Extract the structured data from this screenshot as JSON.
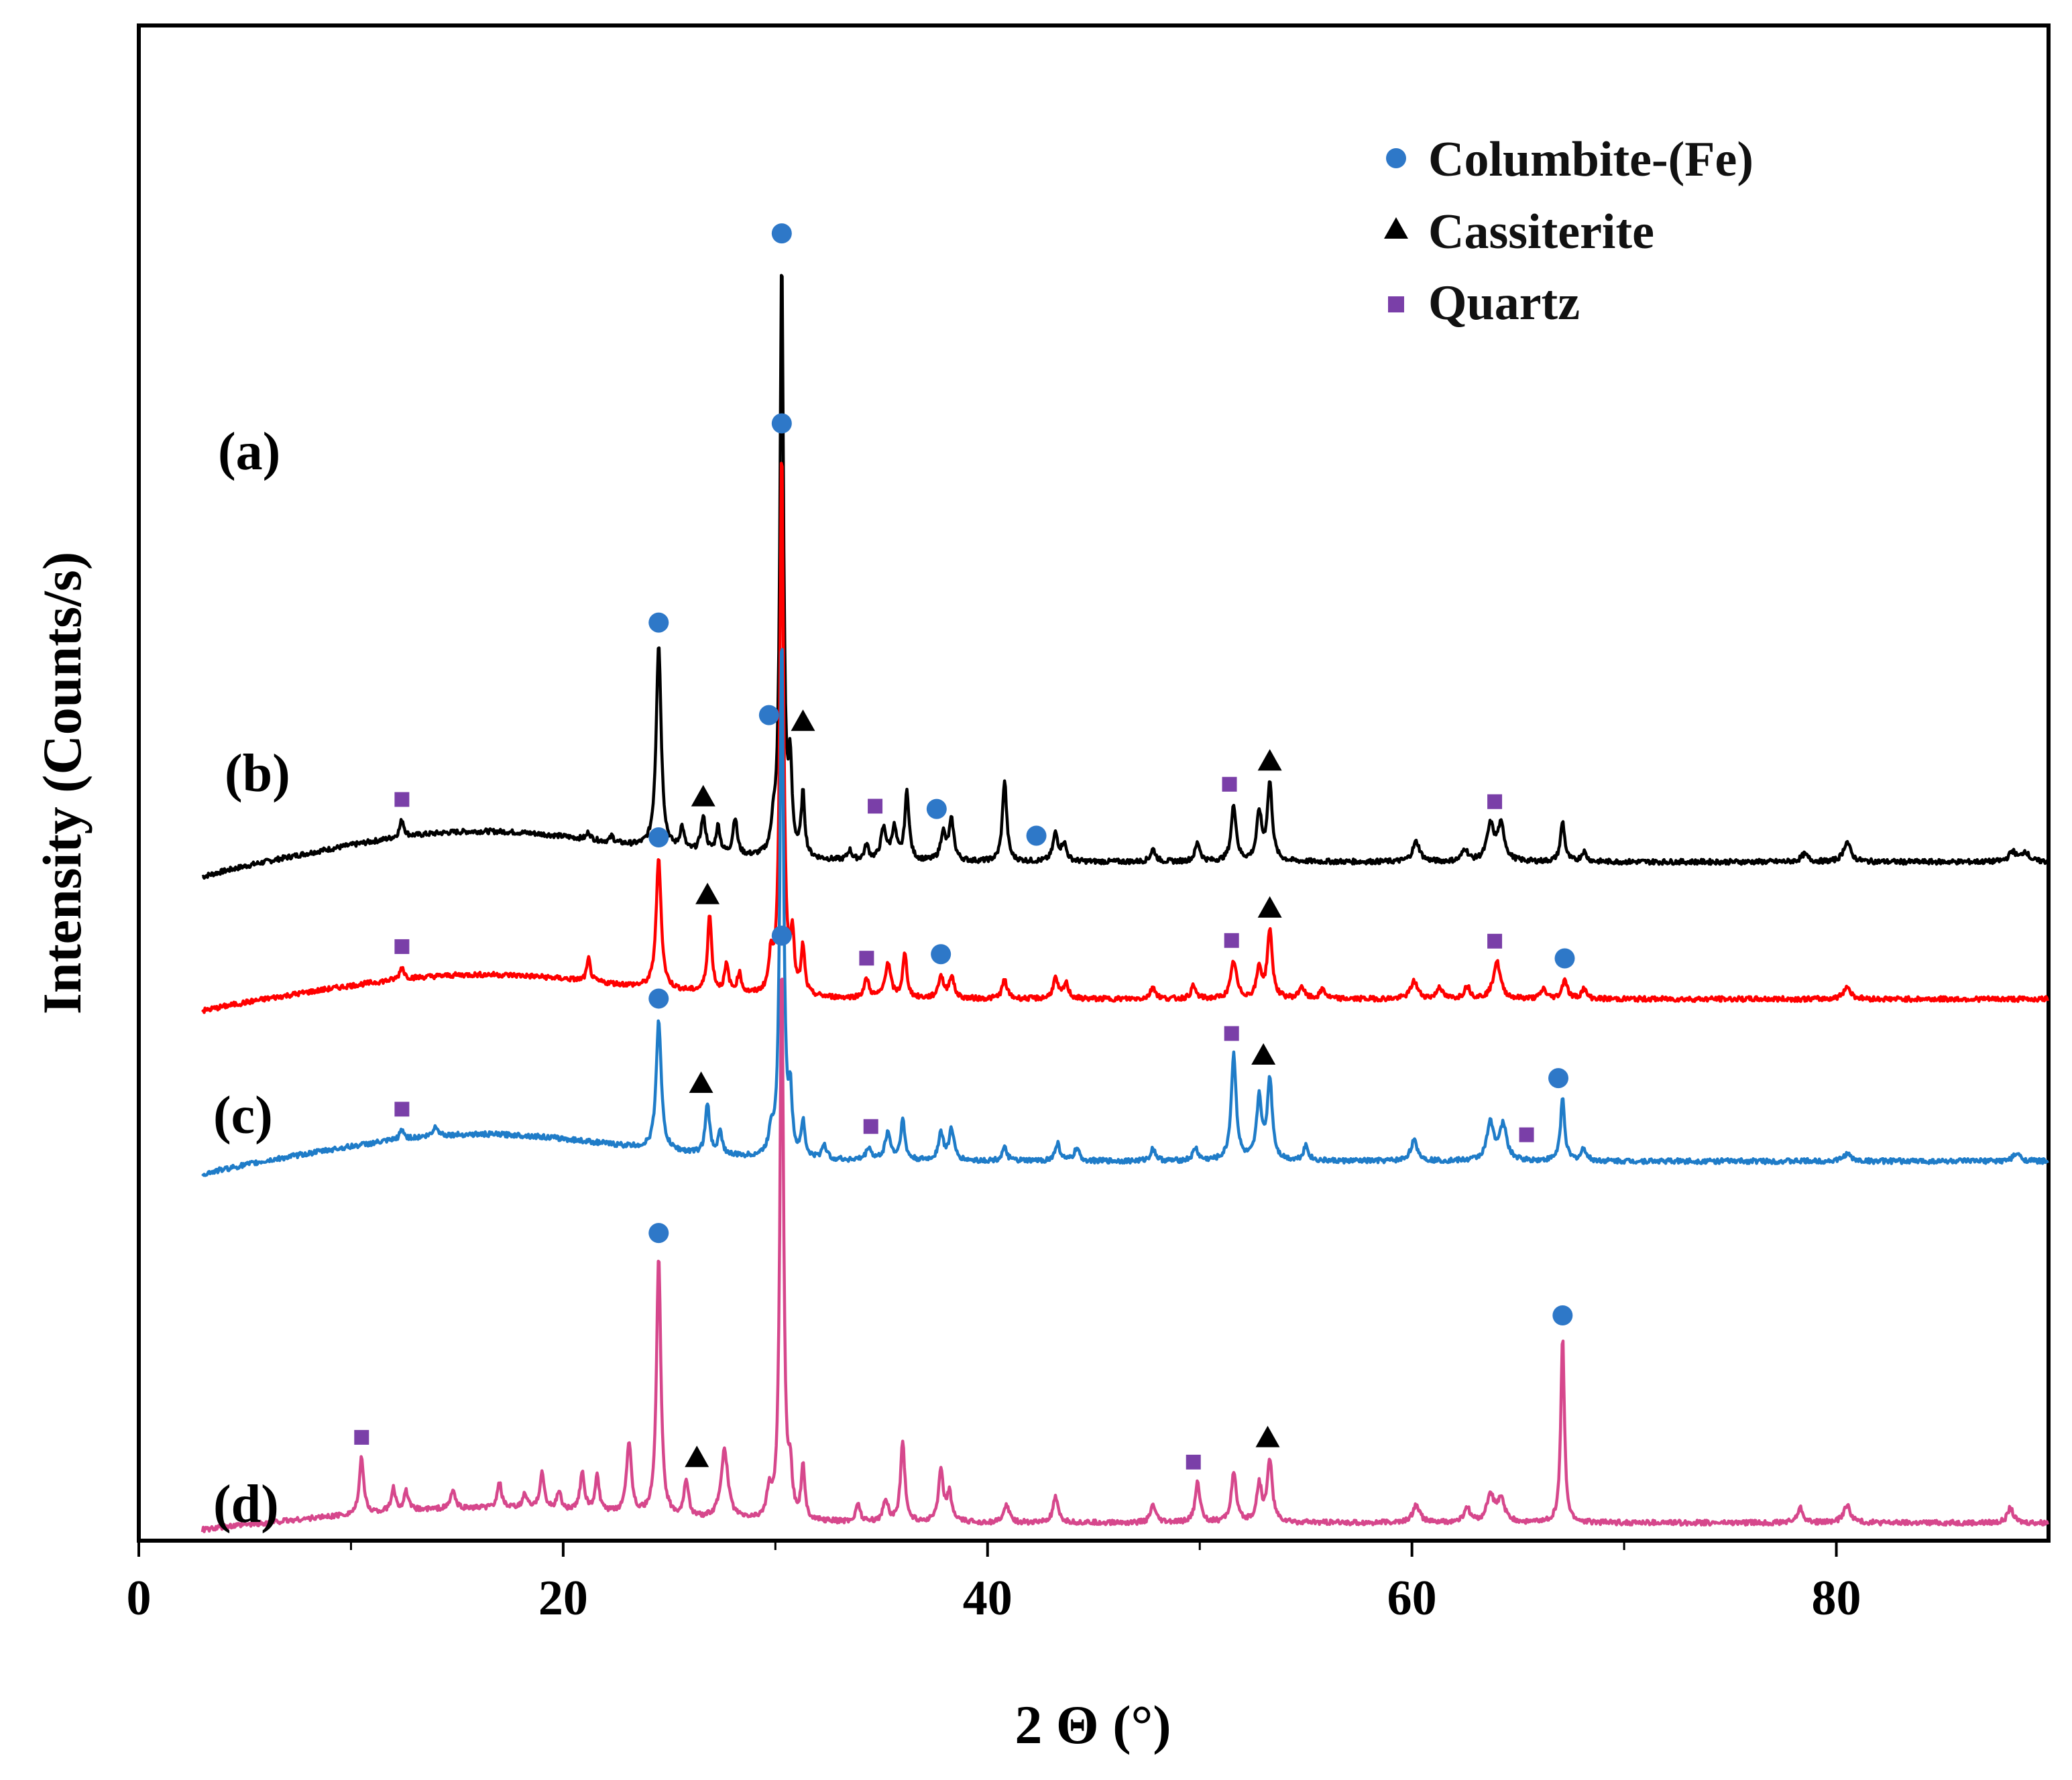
{
  "chart_data": {
    "type": "line",
    "title": "",
    "xlabel": "2 Θ (°)",
    "ylabel": "Intensity (Counts/s)",
    "xlim": [
      0,
      90
    ],
    "xticks": [
      0,
      20,
      40,
      60,
      80
    ],
    "yticks_shown": false,
    "x_range_measured": [
      3,
      90
    ],
    "legend": {
      "position": "top-right",
      "entries": [
        {
          "name": "Columbite-(Fe)",
          "marker": "circle",
          "color": "#2e78c8"
        },
        {
          "name": "Cassiterite",
          "marker": "triangle",
          "color": "#000000"
        },
        {
          "name": "Quartz",
          "marker": "square",
          "color": "#7a3fa8"
        }
      ]
    },
    "series": [
      {
        "name": "(a)",
        "color": "#000000",
        "offset": 540,
        "baseline": 25,
        "peaks": [
          [
            12.4,
            14,
            0.12
          ],
          [
            21.2,
            6,
            0.1
          ],
          [
            22.3,
            5,
            0.1
          ],
          [
            24.5,
            165,
            0.14
          ],
          [
            25.6,
            18,
            0.12
          ],
          [
            26.6,
            28,
            0.14
          ],
          [
            27.3,
            22,
            0.12
          ],
          [
            28.1,
            30,
            0.12
          ],
          [
            29.9,
            20,
            0.1
          ],
          [
            30.3,
            480,
            0.1
          ],
          [
            30.7,
            65,
            0.1
          ],
          [
            31.3,
            50,
            0.1
          ],
          [
            33.5,
            8,
            0.12
          ],
          [
            34.3,
            12,
            0.12
          ],
          [
            35.1,
            25,
            0.16
          ],
          [
            35.6,
            25,
            0.14
          ],
          [
            36.2,
            55,
            0.12
          ],
          [
            37.9,
            22,
            0.14
          ],
          [
            38.3,
            32,
            0.14
          ],
          [
            40.8,
            65,
            0.12
          ],
          [
            43.2,
            22,
            0.14
          ],
          [
            43.6,
            14,
            0.14
          ],
          [
            47.8,
            10,
            0.14
          ],
          [
            49.9,
            15,
            0.14
          ],
          [
            51.6,
            45,
            0.14
          ],
          [
            52.8,
            38,
            0.14
          ],
          [
            53.3,
            62,
            0.14
          ],
          [
            60.2,
            16,
            0.2
          ],
          [
            62.5,
            10,
            0.16
          ],
          [
            63.7,
            28,
            0.2
          ],
          [
            64.2,
            28,
            0.2
          ],
          [
            67.1,
            32,
            0.12
          ],
          [
            68.1,
            8,
            0.14
          ],
          [
            78.5,
            6,
            0.2
          ],
          [
            80.5,
            16,
            0.2
          ],
          [
            88.3,
            8,
            0.2
          ],
          [
            88.9,
            8,
            0.2
          ]
        ]
      },
      {
        "name": "(b)",
        "color": "#ff0000",
        "offset": 430,
        "baseline": 20,
        "peaks": [
          [
            12.4,
            10,
            0.12
          ],
          [
            21.2,
            18,
            0.1
          ],
          [
            24.5,
            105,
            0.14
          ],
          [
            26.9,
            62,
            0.12
          ],
          [
            27.7,
            22,
            0.12
          ],
          [
            28.3,
            16,
            0.12
          ],
          [
            29.8,
            28,
            0.12
          ],
          [
            30.3,
            440,
            0.1
          ],
          [
            30.8,
            45,
            0.1
          ],
          [
            31.3,
            38,
            0.1
          ],
          [
            34.3,
            15,
            0.14
          ],
          [
            35.3,
            28,
            0.16
          ],
          [
            36.1,
            35,
            0.12
          ],
          [
            37.8,
            18,
            0.14
          ],
          [
            38.3,
            18,
            0.14
          ],
          [
            40.8,
            15,
            0.14
          ],
          [
            43.2,
            16,
            0.14
          ],
          [
            43.7,
            12,
            0.14
          ],
          [
            47.8,
            10,
            0.14
          ],
          [
            49.7,
            10,
            0.14
          ],
          [
            51.6,
            30,
            0.16
          ],
          [
            52.8,
            24,
            0.14
          ],
          [
            53.3,
            55,
            0.14
          ],
          [
            54.8,
            10,
            0.14
          ],
          [
            55.8,
            8,
            0.14
          ],
          [
            60.1,
            14,
            0.2
          ],
          [
            61.3,
            10,
            0.14
          ],
          [
            62.6,
            10,
            0.16
          ],
          [
            64.0,
            30,
            0.2
          ],
          [
            66.2,
            8,
            0.14
          ],
          [
            67.2,
            16,
            0.14
          ],
          [
            68.1,
            8,
            0.14
          ],
          [
            80.5,
            10,
            0.2
          ]
        ]
      },
      {
        "name": "(c)",
        "color": "#1f7cc8",
        "offset": 300,
        "baseline": 22,
        "peaks": [
          [
            12.4,
            8,
            0.12
          ],
          [
            14.0,
            8,
            0.14
          ],
          [
            24.5,
            105,
            0.14
          ],
          [
            26.8,
            40,
            0.12
          ],
          [
            27.4,
            18,
            0.12
          ],
          [
            29.8,
            18,
            0.12
          ],
          [
            30.3,
            420,
            0.1
          ],
          [
            30.7,
            45,
            0.1
          ],
          [
            31.3,
            28,
            0.1
          ],
          [
            32.3,
            12,
            0.12
          ],
          [
            34.4,
            10,
            0.14
          ],
          [
            35.3,
            22,
            0.16
          ],
          [
            36.0,
            32,
            0.12
          ],
          [
            37.8,
            22,
            0.14
          ],
          [
            38.3,
            25,
            0.14
          ],
          [
            40.8,
            10,
            0.14
          ],
          [
            43.3,
            14,
            0.14
          ],
          [
            44.2,
            10,
            0.14
          ],
          [
            47.8,
            10,
            0.14
          ],
          [
            49.8,
            10,
            0.14
          ],
          [
            51.6,
            85,
            0.14
          ],
          [
            52.8,
            50,
            0.14
          ],
          [
            53.3,
            65,
            0.14
          ],
          [
            55.0,
            12,
            0.14
          ],
          [
            60.1,
            16,
            0.2
          ],
          [
            63.7,
            30,
            0.2
          ],
          [
            64.3,
            28,
            0.2
          ],
          [
            67.1,
            50,
            0.12
          ],
          [
            68.1,
            10,
            0.14
          ],
          [
            80.5,
            6,
            0.2
          ],
          [
            88.5,
            6,
            0.2
          ]
        ]
      },
      {
        "name": "(d)",
        "color": "#d6478c",
        "offset": 10,
        "baseline": 12,
        "peaks": [
          [
            10.5,
            45,
            0.12
          ],
          [
            12.0,
            18,
            0.12
          ],
          [
            12.6,
            15,
            0.12
          ],
          [
            14.8,
            15,
            0.12
          ],
          [
            17.0,
            20,
            0.12
          ],
          [
            18.2,
            12,
            0.12
          ],
          [
            19.0,
            30,
            0.12
          ],
          [
            19.8,
            15,
            0.12
          ],
          [
            20.9,
            32,
            0.12
          ],
          [
            21.6,
            28,
            0.12
          ],
          [
            23.1,
            58,
            0.14
          ],
          [
            24.5,
            210,
            0.12
          ],
          [
            25.8,
            30,
            0.12
          ],
          [
            27.6,
            55,
            0.2
          ],
          [
            29.7,
            20,
            0.12
          ],
          [
            30.3,
            450,
            0.1
          ],
          [
            30.7,
            35,
            0.1
          ],
          [
            31.3,
            42,
            0.1
          ],
          [
            33.9,
            15,
            0.12
          ],
          [
            35.2,
            18,
            0.14
          ],
          [
            36.0,
            65,
            0.12
          ],
          [
            37.8,
            40,
            0.14
          ],
          [
            38.2,
            22,
            0.14
          ],
          [
            40.9,
            15,
            0.14
          ],
          [
            43.2,
            20,
            0.14
          ],
          [
            47.8,
            14,
            0.14
          ],
          [
            49.9,
            32,
            0.14
          ],
          [
            51.6,
            40,
            0.14
          ],
          [
            52.8,
            30,
            0.14
          ],
          [
            53.3,
            50,
            0.14
          ],
          [
            60.2,
            14,
            0.2
          ],
          [
            62.6,
            12,
            0.16
          ],
          [
            63.7,
            22,
            0.2
          ],
          [
            64.2,
            18,
            0.2
          ],
          [
            67.1,
            150,
            0.1
          ],
          [
            78.3,
            12,
            0.16
          ],
          [
            80.5,
            14,
            0.2
          ],
          [
            88.2,
            12,
            0.16
          ]
        ]
      }
    ],
    "series_labels": [
      "(a)",
      "(b)",
      "(c)",
      "(d)"
    ],
    "phase_markers": [
      {
        "series": "(a)",
        "phase": "Columbite-(Fe)",
        "x": [
          30.3,
          24.5,
          37.6,
          42.3
        ]
      },
      {
        "series": "(a)",
        "phase": "Cassiterite",
        "x": [
          26.6,
          31.3,
          53.3
        ]
      },
      {
        "series": "(a)",
        "phase": "Quartz",
        "x": [
          12.4,
          34.7,
          51.4,
          63.9
        ]
      },
      {
        "series": "(b)",
        "phase": "Columbite-(Fe)",
        "x": [
          30.3,
          24.5,
          37.8,
          67.2
        ]
      },
      {
        "series": "(b)",
        "phase": "Cassiterite",
        "x": [
          26.8,
          53.3
        ]
      },
      {
        "series": "(b)",
        "phase": "Quartz",
        "x": [
          12.4,
          34.3,
          51.5,
          63.9
        ]
      },
      {
        "series": "(c)",
        "phase": "Columbite-(Fe)",
        "x": [
          29.7,
          24.5,
          66.9
        ]
      },
      {
        "series": "(c)",
        "phase": "Cassiterite",
        "x": [
          26.5,
          53.0
        ]
      },
      {
        "series": "(c)",
        "phase": "Quartz",
        "x": [
          12.4,
          34.5,
          51.5,
          65.4
        ]
      },
      {
        "series": "(d)",
        "phase": "Columbite-(Fe)",
        "x": [
          30.3,
          24.5,
          67.1
        ]
      },
      {
        "series": "(d)",
        "phase": "Cassiterite",
        "x": [
          26.3,
          53.2
        ]
      },
      {
        "series": "(d)",
        "phase": "Quartz",
        "x": [
          10.5,
          49.7
        ]
      }
    ]
  }
}
